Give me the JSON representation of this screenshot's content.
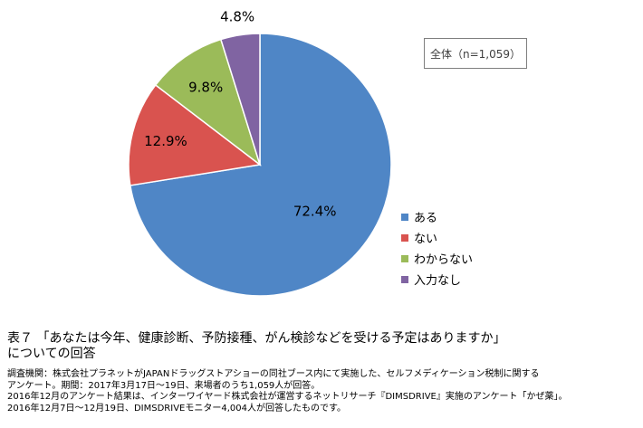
{
  "chart_data": {
    "type": "pie",
    "slices": [
      {
        "label": "ある",
        "value": 72.4,
        "display": "72.4%",
        "color": "#4F86C6"
      },
      {
        "label": "ない",
        "value": 12.9,
        "display": "12.9%",
        "color": "#D9534F"
      },
      {
        "label": "わからない",
        "value": 9.8,
        "display": "9.8%",
        "color": "#9BBB59"
      },
      {
        "label": "入力なし",
        "value": 4.8,
        "display": "4.8%",
        "color": "#8064A2"
      }
    ],
    "start_angle_deg": 0,
    "direction": "clockwise",
    "legend_position": "right"
  },
  "sample_label": "全体（n=1,059）",
  "caption": {
    "title_line1": "表７ 「あなたは今年、健康診断、予防接種、がん検診などを受ける予定はありますか」",
    "title_line2": "についての回答",
    "notes": [
      "調査機関：株式会社プラネットがJAPANドラッグストアショーの同社ブース内にて実施した、セルフメディケーション税制に関する",
      "アンケート。期間：2017年3月17日〜19日、来場者のうち1,059人が回答。",
      "2016年12月のアンケート結果は、インターワイヤード株式会社が運営するネットリサーチ『DIMSDRIVE』実施のアンケート「かぜ薬」。",
      "2016年12月7日〜12月19日、DIMSDRIVEモニター4,004人が回答したものです。"
    ]
  }
}
